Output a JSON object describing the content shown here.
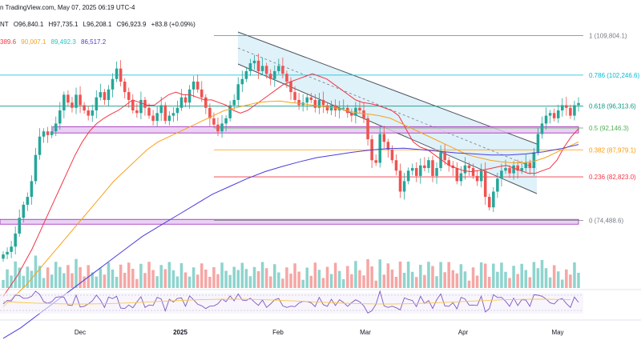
{
  "header": {
    "source_line": "n TradingView.com, May 07, 2025 06:19 UTC-4"
  },
  "ticker": {
    "name": "NT",
    "open": "O96,840.1",
    "high": "H97,735.1",
    "low": "L96,208.1",
    "close": "C96,923.9",
    "change": "+83.8 (+0.09%)"
  },
  "moving_averages": [
    {
      "value": "389.6",
      "color": "#f23645"
    },
    {
      "value": "90,007.1",
      "color": "#f7a21b"
    },
    {
      "value": "89,492.3",
      "color": "#22c6c6"
    },
    {
      "value": "86,517.2",
      "color": "#4a3ddc"
    }
  ],
  "colors": {
    "up": "#26a69a",
    "down": "#ef5350",
    "vol_up": "#8fd4ce",
    "vol_down": "#f5a7a5",
    "channel_fill": "#d7eef7",
    "zone_fill": "#e6c6f2",
    "zone_border": "#9c27b0"
  },
  "chart_data": {
    "type": "candlestick",
    "x_labels": [
      "Dec",
      "2025",
      "Feb",
      "Mar",
      "Apr",
      "May"
    ],
    "y_range": [
      70000,
      112000
    ],
    "fib_levels": [
      {
        "ratio": "1",
        "price": 109804.1,
        "label": "1 (109,804.1)",
        "color": "#787b86"
      },
      {
        "ratio": "0.786",
        "price": 102246.6,
        "label": "0.786 (102,246.6)",
        "color": "#00bcd4"
      },
      {
        "ratio": "0.618",
        "price": 96313.6,
        "label": "0.618 (96,313.6)",
        "color": "#089981"
      },
      {
        "ratio": "0.5",
        "price": 92146.3,
        "label": "0.5 (92,146.3)",
        "color": "#4caf50"
      },
      {
        "ratio": "0.382",
        "price": 87979.1,
        "label": "0.382 (87,979.1)",
        "color": "#ff9800"
      },
      {
        "ratio": "0.236",
        "price": 82823.0,
        "label": "0.236 (82,823.0)",
        "color": "#f23645"
      },
      {
        "ratio": "0",
        "price": 74488.6,
        "label": "0 (74,488.6)",
        "color": "#787b86"
      }
    ],
    "support_zones": [
      {
        "top": 92400,
        "bottom": 91200
      },
      {
        "top": 74700,
        "bottom": 73800
      }
    ],
    "closes": [
      68000,
      68500,
      69500,
      72000,
      75000,
      77500,
      79000,
      82000,
      87000,
      90500,
      91500,
      90800,
      91500,
      93000,
      95500,
      98500,
      97000,
      96000,
      98500,
      96500,
      95500,
      94500,
      95500,
      98000,
      99000,
      97500,
      99500,
      101500,
      103500,
      101000,
      99000,
      97500,
      95500,
      95000,
      97500,
      96000,
      94500,
      93500,
      95000,
      96500,
      93500,
      94500,
      95000,
      96000,
      98000,
      97000,
      99500,
      101000,
      99500,
      98000,
      96000,
      94000,
      92800,
      91500,
      93000,
      94000,
      96500,
      97500,
      100500,
      101500,
      103000,
      104500,
      105000,
      103000,
      104000,
      102500,
      101500,
      103000,
      104000,
      102500,
      101000,
      99000,
      97500,
      96500,
      97000,
      98000,
      97500,
      96000,
      97500,
      96500,
      95500,
      96500,
      95500,
      96000,
      96000,
      95000,
      94500,
      96000,
      95500,
      94000,
      90000,
      86000,
      85500,
      91000,
      89500,
      88000,
      86000,
      84000,
      80000,
      82000,
      84000,
      84500,
      83000,
      85000,
      84500,
      86000,
      83000,
      84500,
      87500,
      86000,
      85000,
      84500,
      82000,
      83500,
      85000,
      84500,
      83000,
      82000,
      84000,
      79000,
      77000,
      80000,
      82500,
      84000,
      84500,
      83500,
      85000,
      84000,
      84500,
      85500,
      84500,
      87500,
      91000,
      93000,
      94500,
      95000,
      94000,
      95500,
      96500,
      96000,
      94500,
      96500,
      96900
    ],
    "sma_short": [
      60000,
      62000,
      64000,
      66500,
      69000,
      72000,
      75000,
      78000,
      81000,
      84000,
      87000,
      89500,
      91500,
      93000,
      94000,
      94800,
      95500,
      96500,
      97500,
      97000,
      96500,
      96500,
      97500,
      98500,
      99000,
      98500,
      98500,
      98000,
      97500,
      97500,
      97000,
      96500,
      95500,
      95000,
      95500,
      96500,
      97500,
      98500,
      99500,
      100500,
      101000,
      101500,
      102000,
      102500,
      102000,
      101500,
      100500,
      99500,
      98500,
      97500,
      97000,
      96800,
      96500,
      96000,
      95500,
      94500,
      92000,
      89500,
      88500,
      88000,
      87000,
      86000,
      85000,
      84500,
      84000,
      83800,
      84000,
      84200,
      84500,
      84800,
      85000,
      84500,
      84000,
      83500,
      83500,
      84000,
      84500,
      86000,
      88500,
      90500,
      92000
    ],
    "sma_mid": [
      58000,
      60000,
      62000,
      64500,
      67000,
      69500,
      72000,
      74500,
      77000,
      79500,
      82000,
      84000,
      86000,
      88000,
      89500,
      90500,
      91500,
      92500,
      93500,
      94500,
      95500,
      96000,
      96500,
      97000,
      97200,
      97300,
      97000,
      96800,
      96500,
      96200,
      96000,
      95500,
      95000,
      94800,
      94500,
      94000,
      93000,
      92000,
      91000,
      90000,
      89000,
      88000,
      87000,
      86500,
      86000,
      85700,
      85500,
      85500,
      85800,
      86500,
      87500,
      88500,
      89500
    ],
    "sma_long": [
      52000,
      54000,
      56500,
      59000,
      61500,
      64000,
      66500,
      69000,
      71500,
      73500,
      75500,
      77500,
      79500,
      81000,
      82500,
      83800,
      84800,
      85700,
      86500,
      87000,
      87500,
      87900,
      88200,
      88300,
      88000,
      87700,
      87400,
      87200,
      87000,
      87000,
      87200,
      87600,
      88200,
      89000
    ],
    "rsi_note": "RSI panel"
  }
}
